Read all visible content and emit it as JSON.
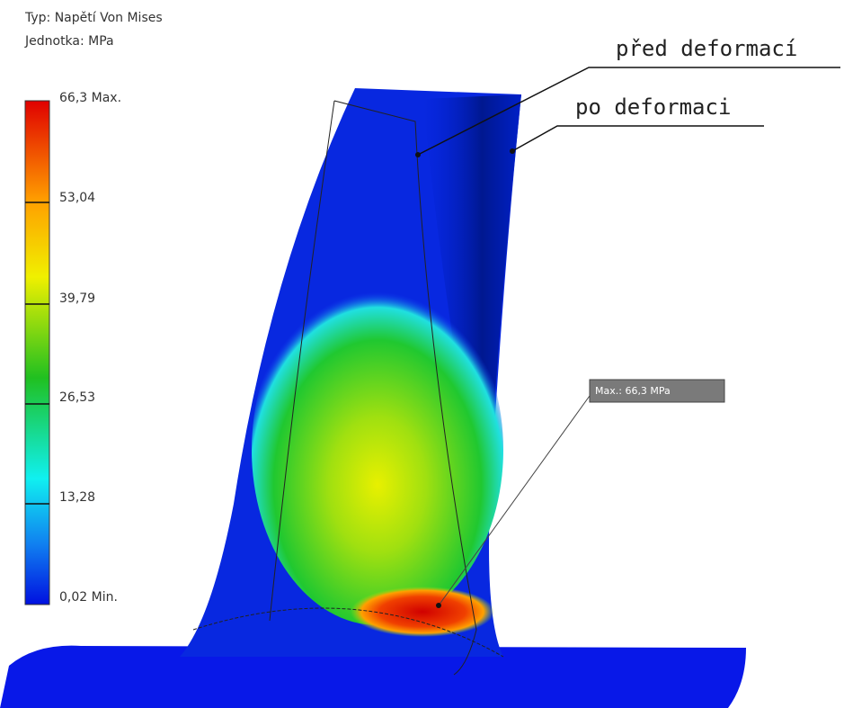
{
  "header": {
    "type": "Typ: Napětí Von Mises",
    "unit": "Jednotka: MPa"
  },
  "legend": {
    "labels": [
      "66,3 Max.",
      "53,04",
      "39,79",
      "26,53",
      "13,28",
      "0,02 Min."
    ]
  },
  "annotations": {
    "before": "před deformací",
    "after": "po deformaci",
    "max_probe": "Max.: 66,3 MPa"
  }
}
